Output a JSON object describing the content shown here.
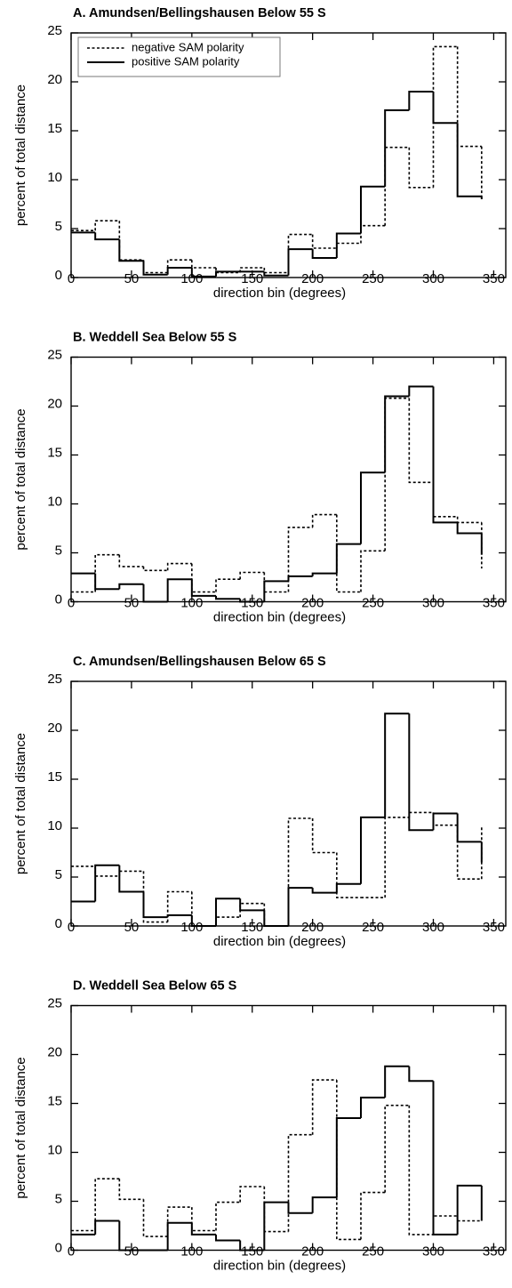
{
  "chart_data": [
    {
      "type": "step",
      "title": "A. Amundsen/Bellingshausen Below 55 S",
      "x_label": "direction bin (degrees)",
      "y_label": "percent of total distance",
      "x": [
        0,
        20,
        40,
        60,
        80,
        100,
        120,
        140,
        160,
        180,
        200,
        220,
        240,
        260,
        280,
        300,
        320,
        340
      ],
      "series": [
        {
          "name": "negative SAM polarity",
          "color": "#000000",
          "style": "dotted",
          "values": [
            4.8,
            5.8,
            1.8,
            0.5,
            1.8,
            1.0,
            0.5,
            1.0,
            0.5,
            4.4,
            3.0,
            3.5,
            5.3,
            13.3,
            9.2,
            23.6,
            13.4,
            7.9
          ]
        },
        {
          "name": "positive SAM polarity",
          "color": "#000000",
          "style": "solid",
          "values": [
            4.6,
            3.9,
            1.7,
            0.3,
            1.0,
            0.1,
            0.6,
            0.6,
            0.2,
            2.9,
            2.0,
            4.5,
            9.3,
            17.1,
            19.0,
            15.8,
            8.3,
            8.0
          ]
        }
      ],
      "xlim": [
        0,
        360
      ],
      "xticks": [
        0,
        50,
        100,
        150,
        200,
        250,
        300,
        350
      ],
      "ylim": [
        0,
        25
      ],
      "yticks": [
        0,
        5,
        10,
        15,
        20,
        25
      ],
      "legend": "upper left"
    },
    {
      "type": "step",
      "title": "B. Weddell Sea Below 55 S",
      "x_label": "direction bin (degrees)",
      "y_label": "percent of total distance",
      "x": [
        0,
        20,
        40,
        60,
        80,
        100,
        120,
        140,
        160,
        180,
        200,
        220,
        240,
        260,
        280,
        300,
        320,
        340
      ],
      "series": [
        {
          "color": "#000000",
          "style": "dotted",
          "values": [
            1.0,
            4.8,
            3.6,
            3.2,
            3.9,
            1.0,
            2.3,
            3.0,
            1.0,
            7.6,
            8.9,
            1.0,
            5.2,
            20.8,
            12.2,
            8.7,
            8.1,
            3.4
          ]
        },
        {
          "color": "#000000",
          "style": "solid",
          "values": [
            2.9,
            1.3,
            1.8,
            0.0,
            2.3,
            0.6,
            0.3,
            0.0,
            2.1,
            2.6,
            2.9,
            5.9,
            13.2,
            21.0,
            22.0,
            8.1,
            7.0,
            4.8
          ]
        }
      ],
      "xlim": [
        0,
        360
      ],
      "xticks": [
        0,
        50,
        100,
        150,
        200,
        250,
        300,
        350
      ],
      "ylim": [
        0,
        25
      ],
      "yticks": [
        0,
        5,
        10,
        15,
        20,
        25
      ]
    },
    {
      "type": "step",
      "title": "C. Amundsen/Bellingshausen Below 65 S",
      "x_label": "direction bin (degrees)",
      "y_label": "percent of total distance",
      "x": [
        0,
        20,
        40,
        60,
        80,
        100,
        120,
        140,
        160,
        180,
        200,
        220,
        240,
        260,
        280,
        300,
        320,
        340
      ],
      "series": [
        {
          "color": "#000000",
          "style": "dotted",
          "values": [
            6.1,
            5.1,
            5.6,
            0.4,
            3.5,
            0.0,
            0.9,
            2.3,
            0.0,
            11.0,
            7.5,
            2.9,
            2.9,
            11.1,
            11.6,
            10.3,
            4.8,
            10.1
          ]
        },
        {
          "color": "#000000",
          "style": "solid",
          "values": [
            2.5,
            6.2,
            3.5,
            0.9,
            1.1,
            0.0,
            2.8,
            1.6,
            0.0,
            3.9,
            3.4,
            4.3,
            11.1,
            21.7,
            9.8,
            11.5,
            8.6,
            6.5
          ]
        }
      ],
      "xlim": [
        0,
        360
      ],
      "xticks": [
        0,
        50,
        100,
        150,
        200,
        250,
        300,
        350
      ],
      "ylim": [
        0,
        25
      ],
      "yticks": [
        0,
        5,
        10,
        15,
        20,
        25
      ]
    },
    {
      "type": "step",
      "title": "D. Weddell Sea Below 65 S",
      "x_label": "direction bin (degrees)",
      "y_label": "percent of total distance",
      "x": [
        0,
        20,
        40,
        60,
        80,
        100,
        120,
        140,
        160,
        180,
        200,
        220,
        240,
        260,
        280,
        300,
        320,
        340
      ],
      "series": [
        {
          "color": "#000000",
          "style": "dotted",
          "values": [
            2.0,
            7.3,
            5.2,
            1.4,
            4.4,
            2.0,
            4.9,
            6.5,
            1.9,
            11.8,
            17.4,
            1.1,
            5.9,
            14.8,
            1.6,
            3.5,
            3.0,
            3.0
          ]
        },
        {
          "color": "#000000",
          "style": "solid",
          "values": [
            1.6,
            3.0,
            0.0,
            0.0,
            2.8,
            1.6,
            1.0,
            0.0,
            4.9,
            3.8,
            5.4,
            13.5,
            15.6,
            18.8,
            17.3,
            1.6,
            6.6,
            3.0
          ]
        }
      ],
      "xlim": [
        0,
        360
      ],
      "xticks": [
        0,
        50,
        100,
        150,
        200,
        250,
        300,
        350
      ],
      "ylim": [
        0,
        25
      ],
      "yticks": [
        0,
        5,
        10,
        15,
        20,
        25
      ]
    }
  ]
}
